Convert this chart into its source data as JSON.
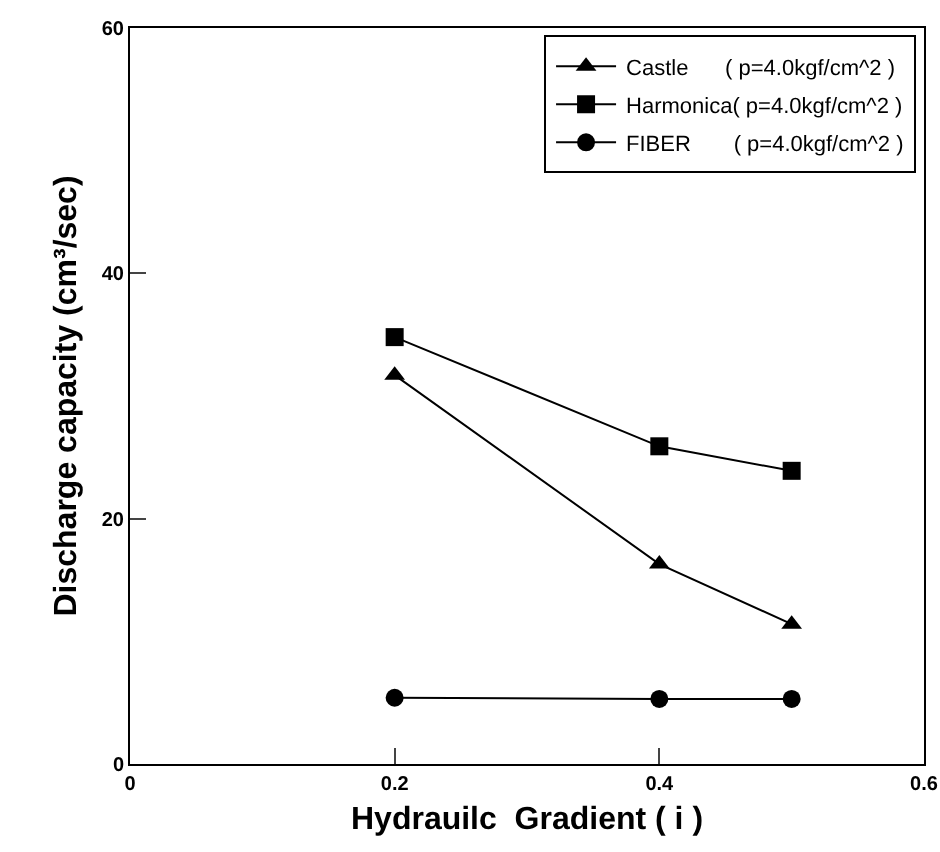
{
  "chart_data": {
    "type": "line",
    "xlabel": "Hydrauilc  Gradient ( i )",
    "ylabel": "Discharge capacity (cm³/sec)",
    "x": [
      0.2,
      0.4,
      0.5
    ],
    "series": [
      {
        "name": "Castle      ( p=4.0kgf/cm^2 )",
        "color": "#000000",
        "marker": "triangle",
        "values": [
          31.7,
          16.3,
          11.4
        ]
      },
      {
        "name": "Harmonica( p=4.0kgf/cm^2 )",
        "color": "#000000",
        "marker": "square",
        "values": [
          34.8,
          25.9,
          23.9
        ]
      },
      {
        "name": "FIBER       ( p=4.0kgf/cm^2 )",
        "color": "#000000",
        "marker": "circle",
        "values": [
          5.4,
          5.3,
          5.3
        ]
      }
    ],
    "xlim": [
      0,
      0.6
    ],
    "xticks": [
      0,
      0.2,
      0.4,
      0.6
    ],
    "ylim": [
      0,
      60
    ],
    "yticks": [
      0,
      20,
      40,
      60
    ],
    "grid": false,
    "legend": "top right",
    "line_style": "solid"
  }
}
